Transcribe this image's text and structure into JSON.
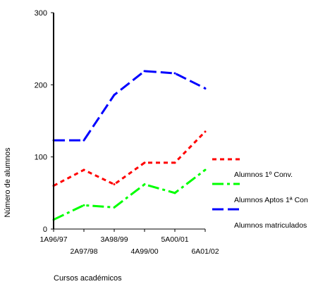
{
  "chart_data": {
    "type": "line",
    "xlabel": "Cursos académicos",
    "ylabel": "Número de alumnos",
    "ylim": [
      0,
      300
    ],
    "yticks": [
      0,
      100,
      200,
      300
    ],
    "categories": [
      "1A96/97",
      "2A97/98",
      "3A98/99",
      "4A99/00",
      "5A00/01",
      "6A01/02"
    ],
    "grid": false,
    "legend_position": "right",
    "series": [
      {
        "name": "Alumnos 1º Conv.",
        "color": "#ff0000",
        "dash": "dotted",
        "values": [
          60,
          82,
          62,
          92,
          92,
          135
        ]
      },
      {
        "name": "Alumnos Aptos 1ª Con",
        "color": "#00ff00",
        "dash": "dash-dot",
        "values": [
          13,
          33,
          30,
          62,
          50,
          82
        ]
      },
      {
        "name": "Alumnos matriculados",
        "color": "#0000ff",
        "dash": "dashed",
        "values": [
          123,
          123,
          186,
          219,
          216,
          195
        ]
      }
    ]
  }
}
